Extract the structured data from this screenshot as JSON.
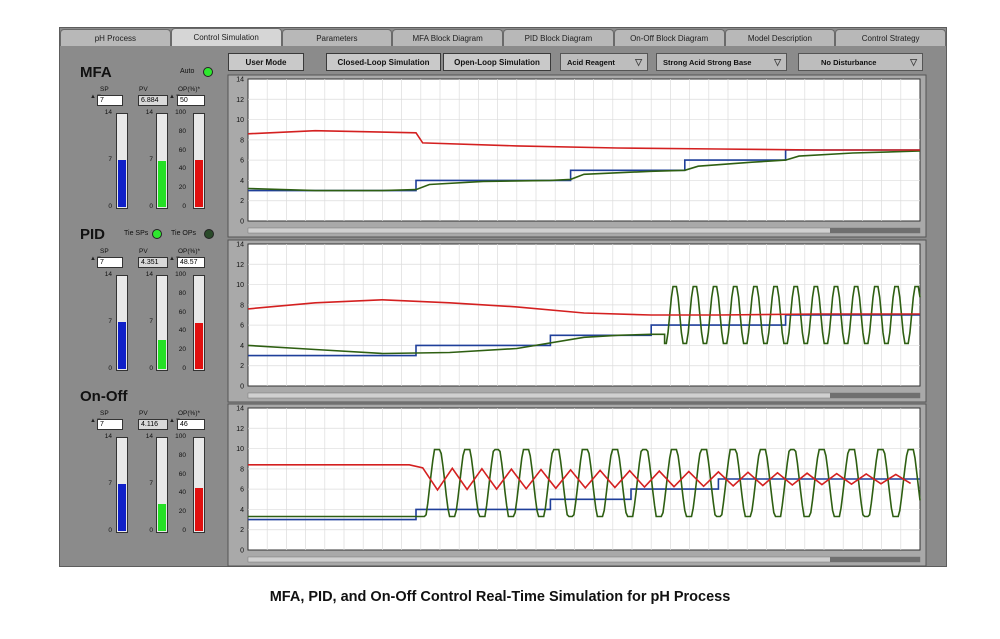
{
  "tabs": [
    "pH Process",
    "Control Simulation",
    "Parameters",
    "MFA Block Diagram",
    "PID Block Diagram",
    "On-Off Block Diagram",
    "Model Description",
    "Control Strategy"
  ],
  "active_tab": 1,
  "toolbar": {
    "user_mode": "User Mode",
    "closed_loop": "Closed-Loop Simulation",
    "open_loop": "Open-Loop Simulation",
    "reagent": "Acid Reagent",
    "process_type": "Strong Acid Strong Base",
    "disturbance": "No Disturbance"
  },
  "controllers": [
    {
      "title": "MFA",
      "sp_label": "SP",
      "pv_label": "PV",
      "op_label": "OP(%)*",
      "sp": "7",
      "pv": "6.884",
      "op": "50",
      "toggle_label": "Auto",
      "toggle2_label": "",
      "sp_level": 0.5,
      "pv_level": 0.49,
      "op_level": 0.5
    },
    {
      "title": "PID",
      "sp_label": "SP",
      "pv_label": "PV",
      "op_label": "OP(%)*",
      "sp": "7",
      "pv": "4.351",
      "op": "48.57",
      "toggle_label": "Tie SPs",
      "toggle2_label": "Tie OPs",
      "sp_level": 0.5,
      "pv_level": 0.31,
      "op_level": 0.4857
    },
    {
      "title": "On-Off",
      "sp_label": "SP",
      "pv_label": "PV",
      "op_label": "OP(%)*",
      "sp": "7",
      "pv": "4.116",
      "op": "46",
      "toggle_label": "",
      "toggle2_label": "",
      "sp_level": 0.5,
      "pv_level": 0.29,
      "op_level": 0.46
    }
  ],
  "gauge_ticks": {
    "ph": [
      "14",
      "7",
      "0"
    ],
    "op": [
      "100",
      "80",
      "60",
      "40",
      "20",
      "0"
    ]
  },
  "chart_ticks": [
    "14",
    "12",
    "10",
    "8",
    "6",
    "4",
    "2",
    "0"
  ],
  "colors": {
    "sp": "#1f3f9a",
    "pv": "#2e5f12",
    "op": "#d42020",
    "sp_fill": "#1020c8",
    "pv_fill": "#25e025",
    "op_fill": "#e01010",
    "led_on": "#2ee82e",
    "led_off": "#2a4a2a"
  },
  "chart_data": [
    {
      "type": "line",
      "title": "",
      "xlabel": "",
      "ylabel": "",
      "ylim": [
        0,
        14
      ],
      "xlim": [
        0,
        100
      ],
      "series": [
        {
          "color": "#1f3f9a",
          "x": [
            0,
            25,
            25,
            48,
            48,
            65,
            65,
            80,
            80,
            100
          ],
          "y": [
            3,
            3,
            4,
            4,
            5,
            5,
            6,
            6,
            7,
            7
          ]
        },
        {
          "color": "#2e5f12",
          "x": [
            0,
            10,
            20,
            25,
            27,
            35,
            45,
            48,
            50,
            60,
            65,
            67,
            75,
            80,
            82,
            90,
            100
          ],
          "y": [
            3.2,
            3,
            3,
            3.1,
            3.6,
            3.9,
            4,
            4.1,
            4.6,
            4.9,
            5,
            5.4,
            5.8,
            6,
            6.4,
            6.7,
            6.9
          ]
        },
        {
          "color": "#d42020",
          "x": [
            0,
            10,
            25,
            26,
            40,
            55,
            70,
            85,
            100
          ],
          "y": [
            8.6,
            8.9,
            8.7,
            7.7,
            7.4,
            7.2,
            7.1,
            7,
            7
          ]
        }
      ]
    },
    {
      "type": "line",
      "title": "",
      "xlabel": "",
      "ylabel": "",
      "ylim": [
        0,
        14
      ],
      "xlim": [
        0,
        100
      ],
      "series": [
        {
          "color": "#1f3f9a",
          "x": [
            0,
            25,
            25,
            45,
            45,
            60,
            60,
            80,
            80,
            100
          ],
          "y": [
            3,
            3,
            4,
            4,
            5,
            5,
            6,
            6,
            7,
            7
          ]
        },
        {
          "color": "#2e5f12",
          "osc": {
            "x0": 62,
            "period": 3,
            "amp": 2.8,
            "center": 7,
            "start_y": 5.1
          },
          "x": [
            0,
            10,
            20,
            30,
            40,
            50,
            55,
            60,
            62
          ],
          "y": [
            4,
            3.6,
            3.2,
            3.3,
            3.7,
            4.8,
            5,
            5.1,
            5.1
          ]
        },
        {
          "color": "#d42020",
          "x": [
            0,
            10,
            20,
            30,
            40,
            50,
            60,
            70,
            85,
            100
          ],
          "y": [
            7.6,
            8.2,
            8.5,
            8.2,
            7.8,
            7.2,
            7,
            7,
            7.1,
            7.1
          ]
        }
      ]
    },
    {
      "type": "line",
      "title": "",
      "xlabel": "",
      "ylabel": "",
      "ylim": [
        0,
        14
      ],
      "xlim": [
        0,
        100
      ],
      "series": [
        {
          "color": "#1f3f9a",
          "x": [
            0,
            25,
            25,
            45,
            45,
            57,
            57,
            70,
            70,
            100
          ],
          "y": [
            3,
            3,
            4,
            4,
            5,
            5,
            6,
            6,
            7,
            7
          ]
        },
        {
          "color": "#2e5f12",
          "osc": {
            "x0": 26,
            "period": 4.4,
            "amp": 3.3,
            "center": 6.6,
            "start_y": 3.3
          },
          "x": [
            0,
            24,
            26
          ],
          "y": [
            3.3,
            3.3,
            3.3
          ]
        },
        {
          "color": "#d42020",
          "zig": {
            "x0": 26,
            "period": 4.4,
            "amp": 1.1,
            "center": 7
          },
          "x": [
            0,
            24,
            26
          ],
          "y": [
            8.4,
            8.4,
            8.1
          ]
        }
      ]
    }
  ],
  "caption": "MFA, PID, and On-Off Control Real-Time Simulation for pH Process"
}
